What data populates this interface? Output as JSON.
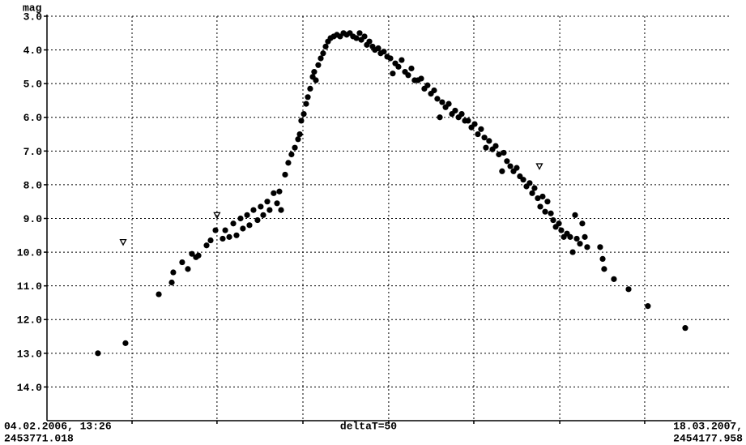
{
  "chart_data": {
    "type": "scatter",
    "ylabel": "mag",
    "xlabel": "deltaT=50",
    "xlim": [
      2453771.018,
      2454177.958
    ],
    "xticks": [
      {
        "value": 2453771.018,
        "label": "04.02.2006, 13:26"
      },
      {
        "value": 2454177.958,
        "label": "18.03.2007,"
      }
    ],
    "xgrid": [
      2453821.6,
      2453872.1,
      2453923.2,
      2453974.2,
      2454024.8,
      2454075.9,
      2454126.4
    ],
    "ylim": [
      15,
      3
    ],
    "yticks": [
      {
        "value": 3,
        "label": "3.0"
      },
      {
        "value": 4,
        "label": "4.0"
      },
      {
        "value": 5,
        "label": "5.0"
      },
      {
        "value": 6,
        "label": "6.0"
      },
      {
        "value": 7,
        "label": "7.0"
      },
      {
        "value": 8,
        "label": "8.0"
      },
      {
        "value": 9,
        "label": "9.0"
      },
      {
        "value": 10,
        "label": "10.0"
      },
      {
        "value": 11,
        "label": "11.0"
      },
      {
        "value": 12,
        "label": "12.0"
      },
      {
        "value": 13,
        "label": "13.0"
      },
      {
        "value": 14,
        "label": "14.0"
      }
    ],
    "grid": true,
    "series": [
      {
        "marker": "circle",
        "color": "#000000",
        "x": [
          2453801.3,
          2453817.7,
          2453837.5,
          2453845.2,
          2453846.1,
          2453851.4,
          2453854.8,
          2453857.2,
          2453859.6,
          2453861.1,
          2453865.9,
          2453868.3,
          2453871.2,
          2453875.5,
          2453877.0,
          2453879.4,
          2453881.8,
          2453883.7,
          2453886.1,
          2453887.5,
          2453890.0,
          2453891.4,
          2453893.8,
          2453896.2,
          2453898.1,
          2453899.6,
          2453902.0,
          2453903.4,
          2453905.8,
          2453907.8,
          2453909.2,
          2453910.2,
          2453912.6,
          2453914.5,
          2453916.4,
          2453918.4,
          2453920.3,
          2453921.3,
          2453922.2,
          2453923.7,
          2453925.1,
          2453926.1,
          2453927.5,
          2453929.0,
          2453929.9,
          2453930.9,
          2453932.3,
          2453933.8,
          2453935.2,
          2453936.7,
          2453938.1,
          2453939.6,
          2453941.5,
          2453943.4,
          2453945.3,
          2453947.3,
          2453949.2,
          2453951.1,
          2453953.0,
          2453955.0,
          2453956.9,
          2453957.9,
          2453959.8,
          2453961.2,
          2453962.7,
          2453964.6,
          2453966.0,
          2453968.0,
          2453969.4,
          2453971.3,
          2453973.3,
          2453975.2,
          2453976.6,
          2453978.1,
          2453980.0,
          2453981.9,
          2453983.9,
          2453985.8,
          2453987.7,
          2453989.6,
          2453991.6,
          2453993.5,
          2453995.4,
          2453997.3,
          2453999.3,
          2454001.2,
          2454003.1,
          2454004.6,
          2454006.0,
          2454008.0,
          2454009.9,
          2454011.8,
          2454013.7,
          2454015.7,
          2454017.6,
          2454019.5,
          2454021.4,
          2454023.4,
          2454025.3,
          2454027.2,
          2454029.1,
          2454031.1,
          2454032.0,
          2454033.9,
          2454035.9,
          2454037.8,
          2454039.7,
          2454041.6,
          2454042.6,
          2454044.5,
          2454046.5,
          2454048.4,
          2454050.3,
          2454052.2,
          2454054.2,
          2454056.1,
          2454058.0,
          2454059.5,
          2454060.9,
          2454062.8,
          2454064.3,
          2454065.7,
          2454067.2,
          2454068.6,
          2454070.6,
          2454072.0,
          2454073.5,
          2454075.4,
          2454076.8,
          2454078.3,
          2454080.2,
          2454082.1,
          2454083.6,
          2454085.0,
          2454086.0,
          2454087.9,
          2454089.3,
          2454090.8,
          2454092.2,
          2454099.9,
          2454101.4,
          2454102.3,
          2454108.1,
          2454116.8,
          2454128.3,
          2454150.5
        ],
        "values": [
          13.0,
          12.7,
          11.25,
          10.9,
          10.6,
          10.3,
          10.5,
          10.05,
          10.15,
          10.1,
          9.8,
          9.65,
          9.35,
          9.6,
          9.35,
          9.55,
          9.15,
          9.5,
          9.0,
          9.3,
          8.9,
          9.2,
          8.75,
          9.05,
          8.65,
          8.9,
          8.5,
          8.75,
          8.25,
          8.55,
          8.2,
          8.75,
          7.7,
          7.35,
          7.1,
          6.9,
          6.65,
          6.5,
          6.1,
          5.9,
          5.6,
          5.4,
          5.15,
          4.8,
          4.65,
          4.9,
          4.45,
          4.25,
          4.1,
          3.9,
          3.75,
          3.65,
          3.6,
          3.55,
          3.6,
          3.5,
          3.55,
          3.5,
          3.6,
          3.65,
          3.5,
          3.7,
          3.6,
          3.85,
          3.75,
          3.9,
          4.0,
          3.95,
          4.1,
          4.05,
          4.2,
          4.25,
          4.7,
          4.4,
          4.5,
          4.3,
          4.65,
          4.75,
          4.55,
          4.9,
          4.9,
          4.85,
          5.15,
          5.05,
          5.3,
          5.2,
          5.45,
          6.0,
          5.55,
          5.7,
          5.6,
          5.9,
          5.8,
          6.0,
          5.9,
          6.1,
          6.1,
          6.3,
          6.2,
          6.5,
          6.35,
          6.6,
          6.9,
          6.7,
          6.95,
          6.85,
          7.1,
          7.6,
          7.05,
          7.3,
          7.45,
          7.6,
          7.5,
          7.75,
          7.85,
          8.05,
          7.95,
          8.25,
          8.1,
          8.4,
          8.65,
          8.35,
          8.8,
          8.5,
          8.85,
          9.05,
          9.25,
          9.15,
          9.35,
          9.55,
          9.45,
          9.55,
          10.0,
          8.9,
          9.6,
          9.75,
          9.15,
          9.55,
          9.85,
          9.85,
          10.2,
          10.5,
          10.8,
          11.1,
          11.6,
          12.25
        ]
      },
      {
        "marker": "triangle-down",
        "color": "#000000",
        "x": [
          2453816.3,
          2453872.1,
          2454063.8
        ],
        "values": [
          9.7,
          8.9,
          7.45
        ]
      }
    ]
  }
}
